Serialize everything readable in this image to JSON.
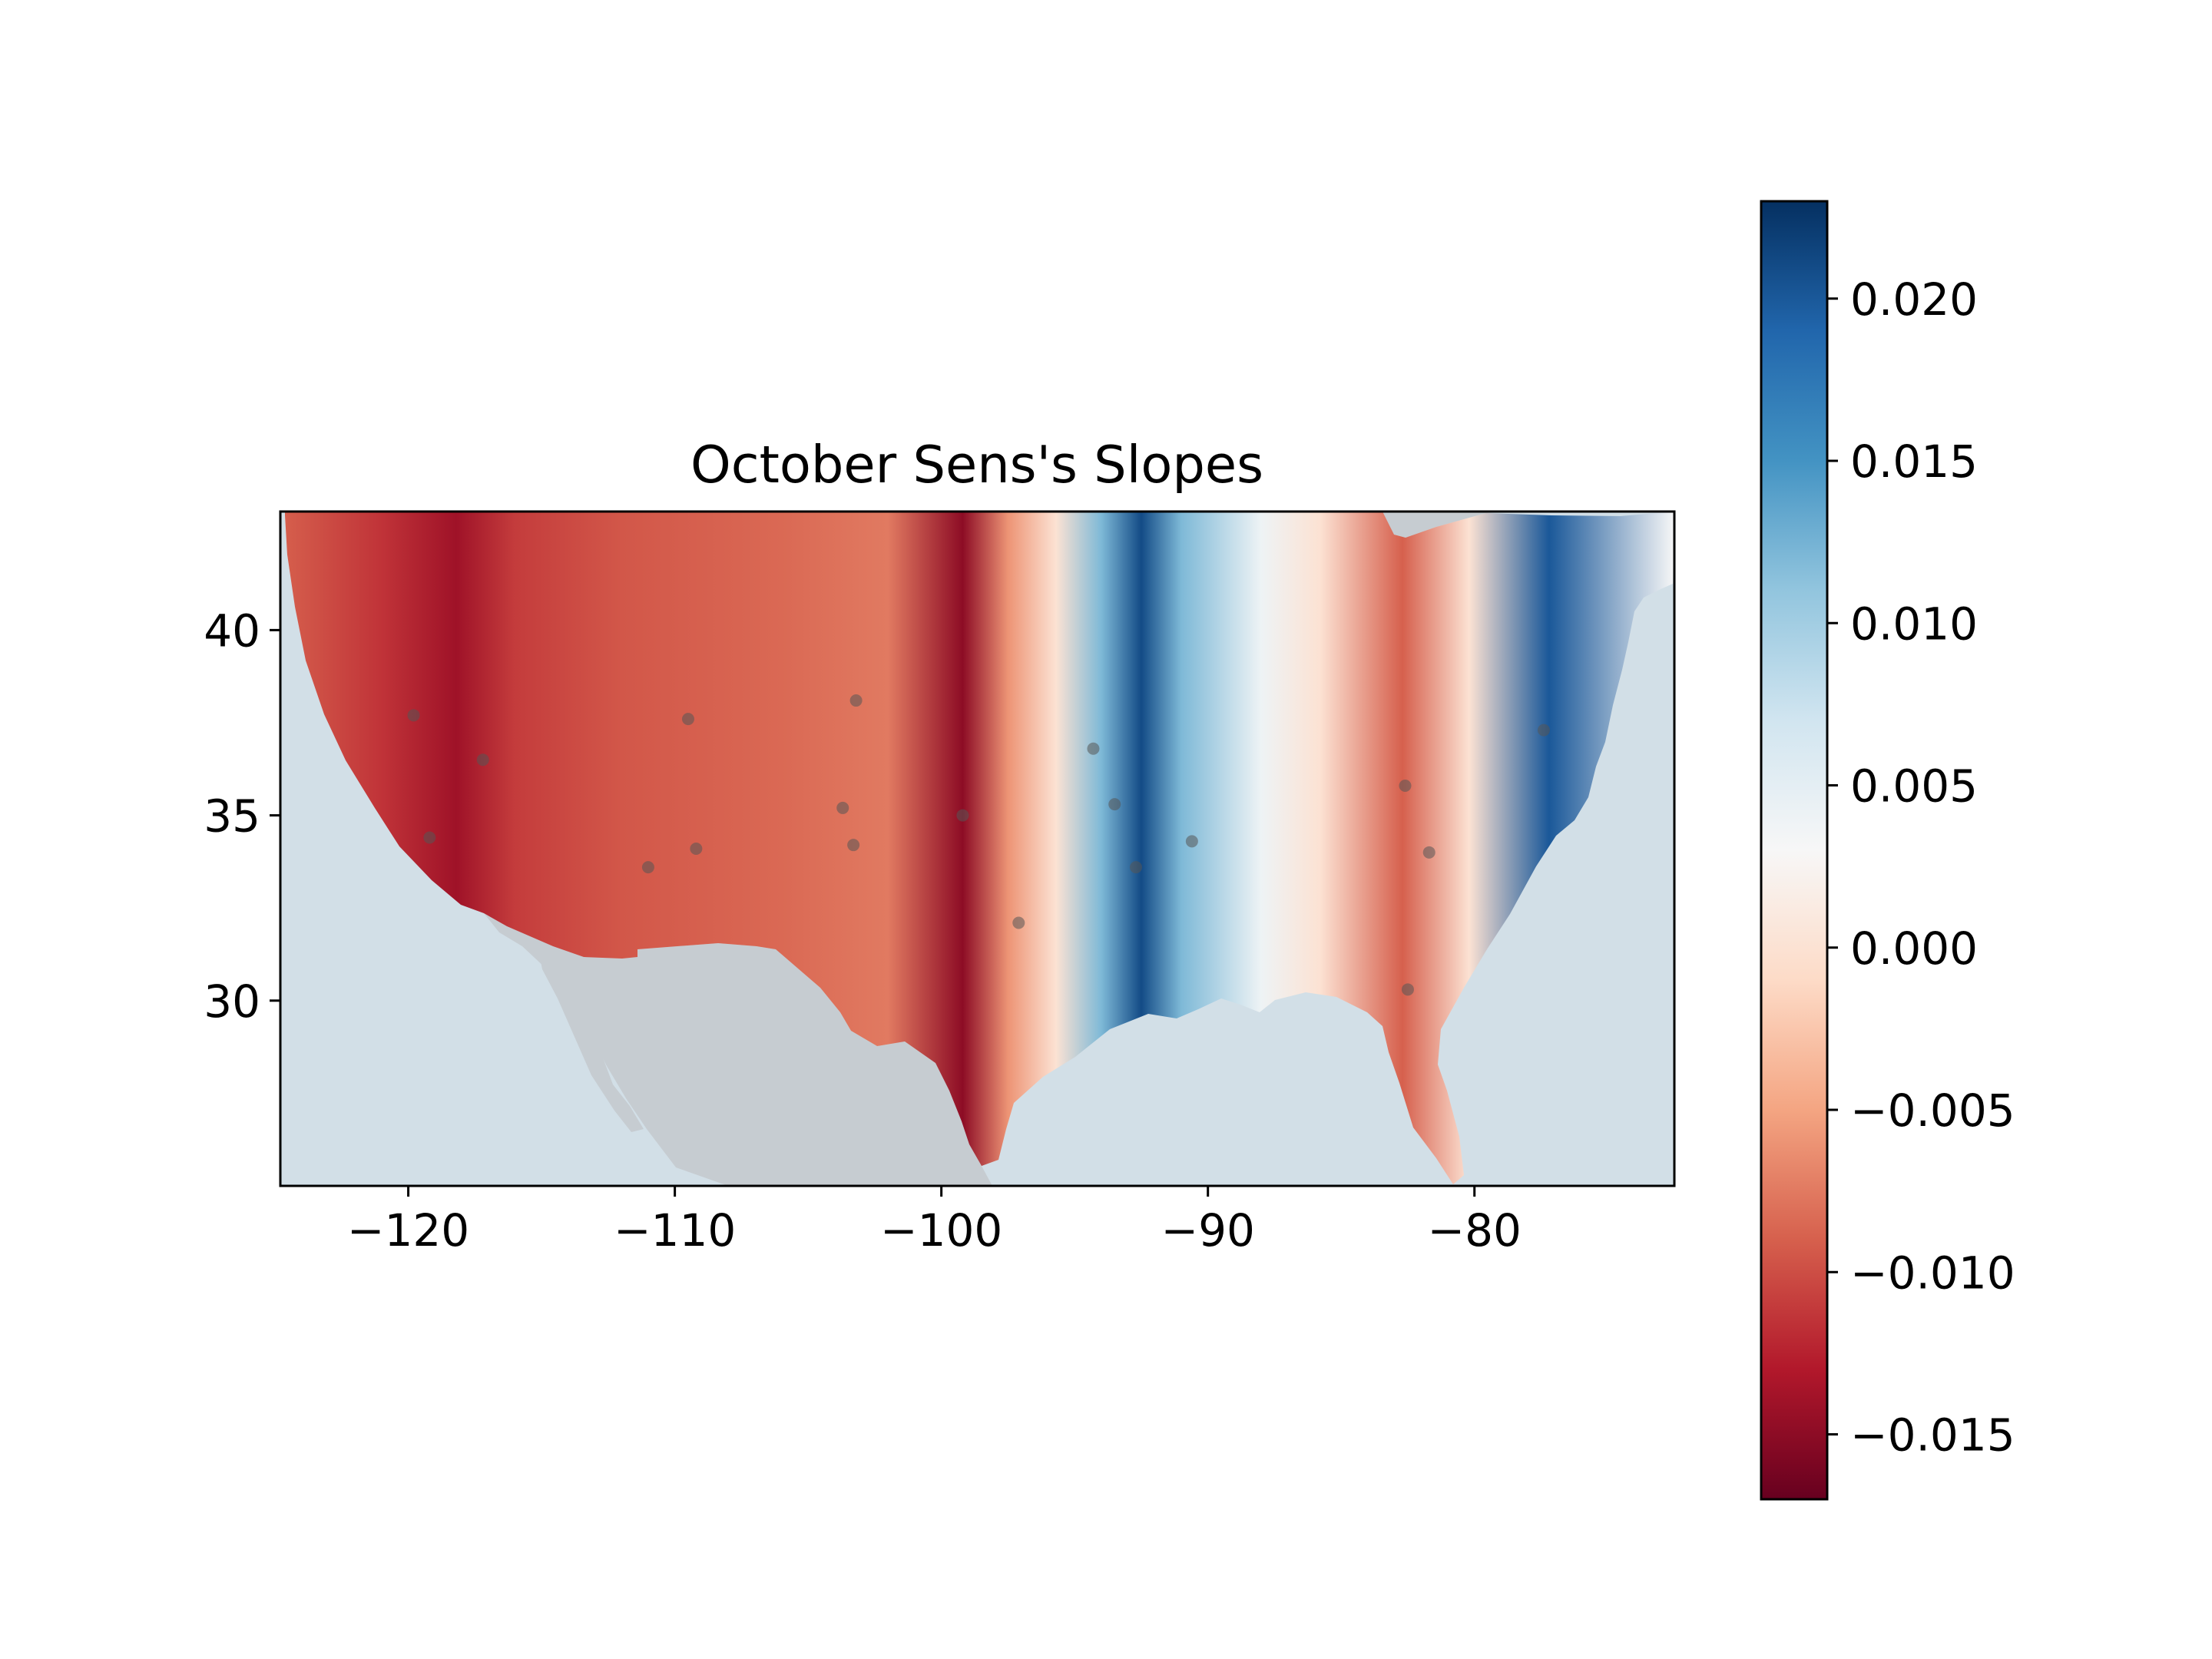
{
  "chart_data": {
    "type": "heatmap",
    "title": "October Sens's Slopes",
    "xlabel": "",
    "ylabel": "",
    "xlim": [
      -124.8,
      -72.5
    ],
    "ylim": [
      25.0,
      43.2
    ],
    "x_ticks": [
      -120,
      -110,
      -100,
      -90,
      -80
    ],
    "x_tick_labels": [
      "−120",
      "−110",
      "−100",
      "−90",
      "−80"
    ],
    "y_ticks": [
      30,
      35,
      40
    ],
    "y_tick_labels": [
      "30",
      "35",
      "40"
    ],
    "colormap": "RdBu",
    "colorbar": {
      "range": [
        -0.017,
        0.023
      ],
      "ticks": [
        0.02,
        0.015,
        0.01,
        0.005,
        0.0,
        -0.005,
        -0.01,
        -0.015
      ],
      "tick_labels": [
        "0.020",
        "0.015",
        "0.010",
        "0.005",
        "0.000",
        "−0.005",
        "−0.010",
        "−0.015"
      ]
    },
    "stations": [
      {
        "lon": -119.8,
        "lat": 37.7
      },
      {
        "lon": -117.2,
        "lat": 36.5
      },
      {
        "lon": -119.2,
        "lat": 34.4
      },
      {
        "lon": -109.5,
        "lat": 37.6
      },
      {
        "lon": -109.2,
        "lat": 34.1
      },
      {
        "lon": -111.0,
        "lat": 33.6
      },
      {
        "lon": -103.2,
        "lat": 38.1
      },
      {
        "lon": -103.7,
        "lat": 35.2
      },
      {
        "lon": -103.3,
        "lat": 34.2
      },
      {
        "lon": -99.2,
        "lat": 35.0
      },
      {
        "lon": -97.1,
        "lat": 32.1
      },
      {
        "lon": -94.3,
        "lat": 36.8
      },
      {
        "lon": -93.5,
        "lat": 35.3
      },
      {
        "lon": -92.7,
        "lat": 33.6
      },
      {
        "lon": -90.6,
        "lat": 34.3
      },
      {
        "lon": -82.6,
        "lat": 35.8
      },
      {
        "lon": -81.7,
        "lat": 34.0
      },
      {
        "lon": -82.5,
        "lat": 30.3
      },
      {
        "lon": -77.4,
        "lat": 37.3
      }
    ],
    "slope_field_by_longitude": [
      {
        "lon": -124.8,
        "slope": -0.009
      },
      {
        "lon": -121.0,
        "slope": -0.0115
      },
      {
        "lon": -118.2,
        "slope": -0.014
      },
      {
        "lon": -116.0,
        "slope": -0.011
      },
      {
        "lon": -112.0,
        "slope": -0.0095
      },
      {
        "lon": -106.0,
        "slope": -0.0085
      },
      {
        "lon": -102.0,
        "slope": -0.0075
      },
      {
        "lon": -99.2,
        "slope": -0.015
      },
      {
        "lon": -97.5,
        "slope": -0.006
      },
      {
        "lon": -95.7,
        "slope": 0.0
      },
      {
        "lon": -94.0,
        "slope": 0.012
      },
      {
        "lon": -92.5,
        "slope": 0.021
      },
      {
        "lon": -91.0,
        "slope": 0.012
      },
      {
        "lon": -88.0,
        "slope": 0.004
      },
      {
        "lon": -85.8,
        "slope": 0.0
      },
      {
        "lon": -82.7,
        "slope": -0.009
      },
      {
        "lon": -80.2,
        "slope": 0.0
      },
      {
        "lon": -77.2,
        "slope": 0.02
      },
      {
        "lon": -72.5,
        "slope": 0.003
      }
    ],
    "colors": {
      "ocean": "#d2dfe7",
      "land_other": "#c6ccd1",
      "station_marker": "#555555"
    }
  }
}
